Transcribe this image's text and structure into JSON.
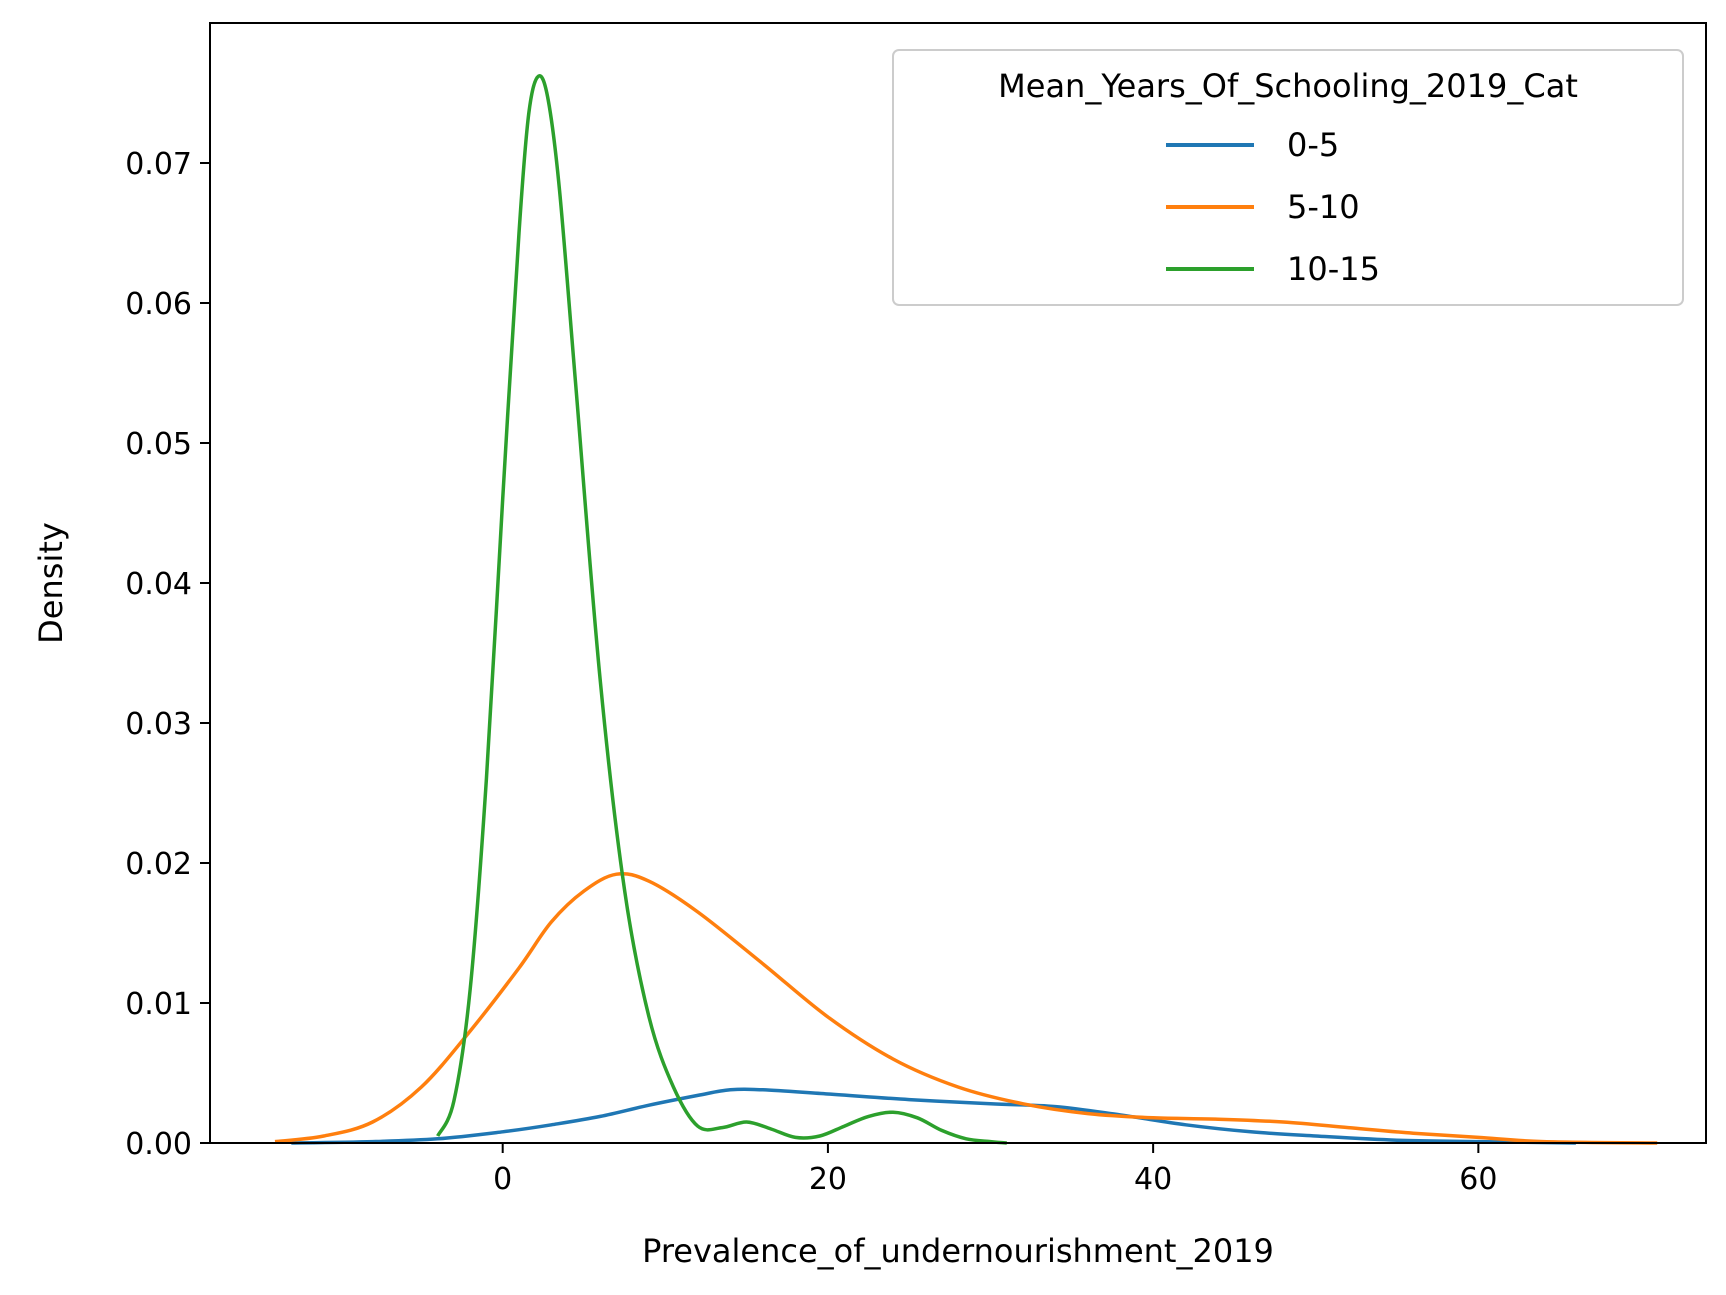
{
  "chart_data": {
    "type": "line",
    "xlabel": "Prevalence_of_undernourishment_2019",
    "ylabel": "Density",
    "xlim": [
      -18,
      74
    ],
    "ylim": [
      0,
      0.08
    ],
    "xticks": [
      0,
      20,
      40,
      60
    ],
    "yticks": [
      0.0,
      0.01,
      0.02,
      0.03,
      0.04,
      0.05,
      0.06,
      0.07
    ],
    "ytick_labels": [
      "0.00",
      "0.01",
      "0.02",
      "0.03",
      "0.04",
      "0.05",
      "0.06",
      "0.07"
    ],
    "grid": false,
    "legend": {
      "title": "Mean_Years_Of_Schooling_2019_Cat",
      "position": "top-right"
    },
    "series": [
      {
        "name": "0-5",
        "color": "#1f77b4",
        "points": [
          [
            -13,
            0.0
          ],
          [
            -8,
            0.0001
          ],
          [
            -4,
            0.0003
          ],
          [
            0,
            0.0008
          ],
          [
            3,
            0.0013
          ],
          [
            6,
            0.0019
          ],
          [
            9,
            0.0027
          ],
          [
            12,
            0.0034
          ],
          [
            14,
            0.0038
          ],
          [
            16,
            0.0038
          ],
          [
            20,
            0.0035
          ],
          [
            25,
            0.0031
          ],
          [
            30,
            0.0028
          ],
          [
            34,
            0.0026
          ],
          [
            38,
            0.002
          ],
          [
            42,
            0.0013
          ],
          [
            46,
            0.0008
          ],
          [
            50,
            0.0005
          ],
          [
            55,
            0.0002
          ],
          [
            60,
            0.0001
          ],
          [
            66,
            0.0
          ]
        ]
      },
      {
        "name": "5-10",
        "color": "#ff7f0e",
        "points": [
          [
            -14,
            0.0001
          ],
          [
            -11,
            0.0005
          ],
          [
            -8,
            0.0015
          ],
          [
            -5,
            0.004
          ],
          [
            -2,
            0.008
          ],
          [
            1,
            0.0125
          ],
          [
            3,
            0.0158
          ],
          [
            5,
            0.018
          ],
          [
            7,
            0.0192
          ],
          [
            9,
            0.0187
          ],
          [
            12,
            0.0165
          ],
          [
            16,
            0.0128
          ],
          [
            20,
            0.009
          ],
          [
            24,
            0.006
          ],
          [
            28,
            0.004
          ],
          [
            32,
            0.0028
          ],
          [
            36,
            0.0021
          ],
          [
            40,
            0.0018
          ],
          [
            44,
            0.0017
          ],
          [
            48,
            0.0015
          ],
          [
            52,
            0.0011
          ],
          [
            56,
            0.0007
          ],
          [
            60,
            0.0004
          ],
          [
            64,
            0.0001
          ],
          [
            71,
            0.0
          ]
        ]
      },
      {
        "name": "10-15",
        "color": "#2ca02c",
        "points": [
          [
            -4,
            0.0005
          ],
          [
            -3,
            0.003
          ],
          [
            -2,
            0.011
          ],
          [
            -1,
            0.026
          ],
          [
            0,
            0.046
          ],
          [
            1,
            0.065
          ],
          [
            1.6,
            0.0735
          ],
          [
            2.2,
            0.0762
          ],
          [
            2.8,
            0.0745
          ],
          [
            3.5,
            0.068
          ],
          [
            4.5,
            0.054
          ],
          [
            6,
            0.033
          ],
          [
            7.5,
            0.018
          ],
          [
            9,
            0.009
          ],
          [
            10.5,
            0.004
          ],
          [
            12,
            0.0012
          ],
          [
            13.5,
            0.0011
          ],
          [
            15,
            0.0015
          ],
          [
            16.5,
            0.001
          ],
          [
            18,
            0.0004
          ],
          [
            19.5,
            0.0005
          ],
          [
            21,
            0.0012
          ],
          [
            22.5,
            0.0019
          ],
          [
            24,
            0.0022
          ],
          [
            25.5,
            0.0018
          ],
          [
            27,
            0.0009
          ],
          [
            28.5,
            0.0003
          ],
          [
            30,
            0.0001
          ],
          [
            31,
            0.0
          ]
        ]
      }
    ]
  }
}
